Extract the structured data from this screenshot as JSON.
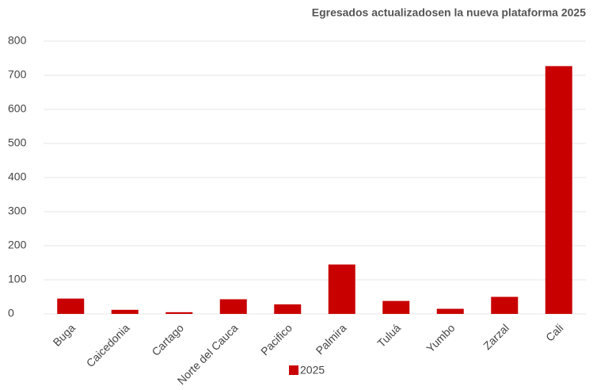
{
  "chart_data": {
    "type": "bar",
    "title": "Egresados actualizadosen la nueva plataforma 2025",
    "categories": [
      "Buga",
      "Caicedonia",
      "Cartago",
      "Norte del Cauca",
      "Pacifico",
      "Palmira",
      "Tuluá",
      "Yumbo",
      "Zarzal",
      "Cali"
    ],
    "series": [
      {
        "name": "2025",
        "color": "#c90000",
        "values": [
          45,
          12,
          5,
          43,
          28,
          145,
          38,
          15,
          50,
          727
        ]
      }
    ],
    "ylim": [
      0,
      800
    ],
    "yticks": [
      0,
      100,
      200,
      300,
      400,
      500,
      600,
      700,
      800
    ],
    "grid": true,
    "legend": "bottom"
  }
}
